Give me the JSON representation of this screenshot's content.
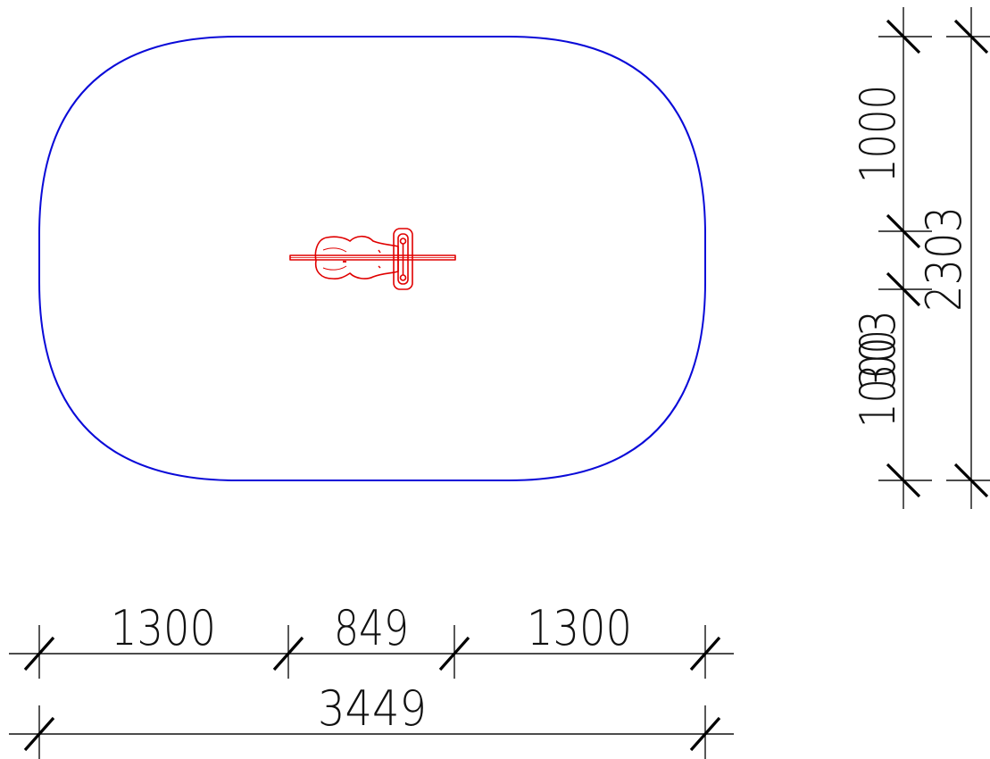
{
  "colors": {
    "boundary": "#0a0ad8",
    "equipment": "#e00000",
    "dimension": "#111111"
  },
  "dimensions": {
    "horizontal_segments": [
      "1300",
      "849",
      "1300"
    ],
    "horizontal_total": "3449",
    "vertical_segments": [
      "1000",
      "303",
      "1000"
    ],
    "vertical_total": "2303"
  }
}
